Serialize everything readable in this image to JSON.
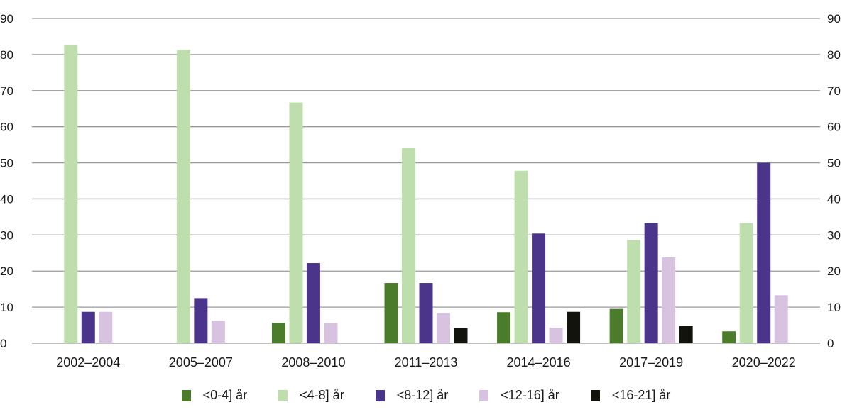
{
  "chart_data": {
    "type": "bar",
    "title": "",
    "xlabel": "",
    "ylabel": "",
    "ylim": [
      0,
      90
    ],
    "yticks": [
      0,
      10,
      20,
      30,
      40,
      50,
      60,
      70,
      80,
      90
    ],
    "y_axis_sides": [
      "left",
      "right"
    ],
    "grid": true,
    "legend_position": "bottom",
    "categories": [
      "2002–2004",
      "2005–2007",
      "2008–2010",
      "2011–2013",
      "2014–2016",
      "2017–2019",
      "2020–2022"
    ],
    "series": [
      {
        "name": "<0-4] år",
        "color": "#4a7c2c",
        "values": [
          0,
          0,
          5.6,
          16.7,
          8.6,
          9.5,
          3.3
        ]
      },
      {
        "name": "<4-8] år",
        "color": "#bfdeae",
        "values": [
          82.6,
          81.3,
          66.7,
          54.2,
          47.8,
          28.6,
          33.3
        ]
      },
      {
        "name": "<8-12] år",
        "color": "#4b358b",
        "values": [
          8.7,
          12.5,
          22.2,
          16.7,
          30.4,
          33.3,
          50.0
        ]
      },
      {
        "name": "<12-16] år",
        "color": "#d7c2df",
        "values": [
          8.7,
          6.3,
          5.6,
          8.3,
          4.3,
          23.8,
          13.3
        ]
      },
      {
        "name": "<16-21] år",
        "color": "#12130d",
        "values": [
          0,
          0,
          0,
          4.2,
          8.7,
          4.8,
          0
        ]
      }
    ]
  },
  "colors": {
    "gridline": "#9a9a9a",
    "text": "#1a1a1a",
    "background": "#ffffff"
  }
}
